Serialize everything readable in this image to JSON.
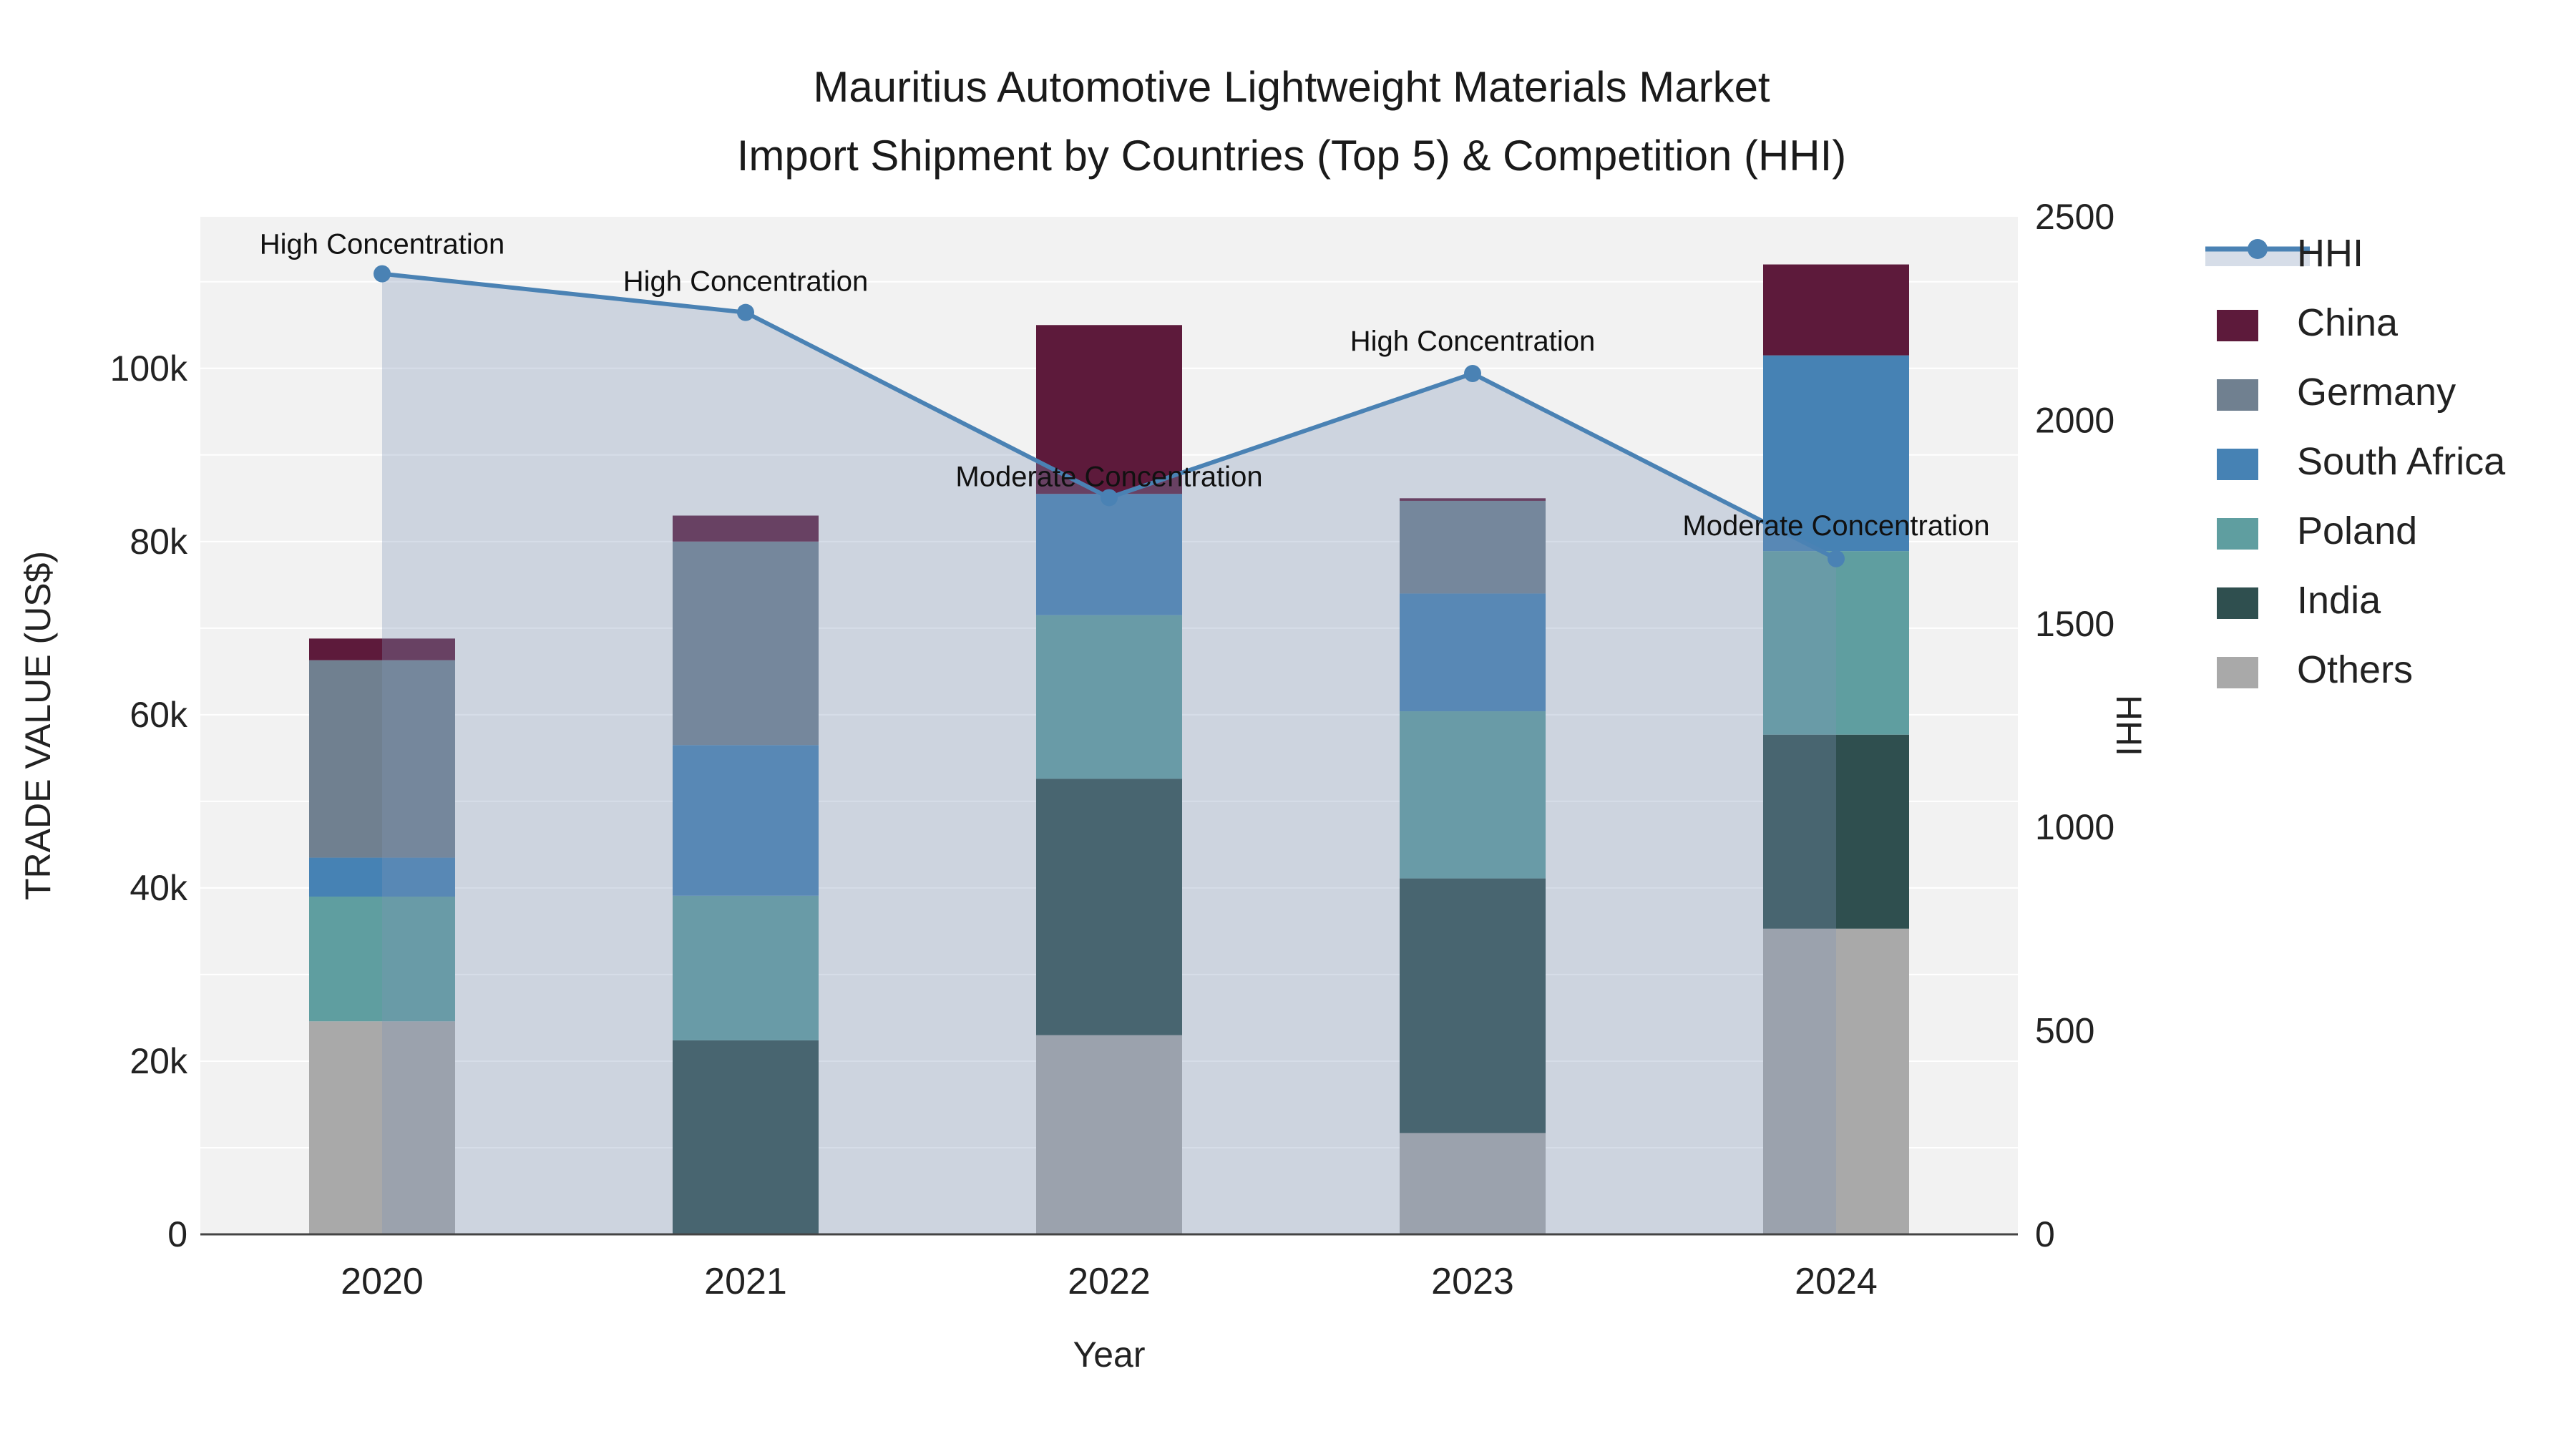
{
  "title": {
    "line1": "Mauritius Automotive Lightweight Materials Market",
    "line2": "Import Shipment by Countries (Top 5) & Competition (HHI)"
  },
  "axes": {
    "y_left": {
      "title": "TRADE VALUE (US$)",
      "tick_values": [
        0,
        20000,
        40000,
        60000,
        80000,
        100000
      ],
      "tick_labels": [
        "0",
        "20k",
        "40k",
        "60k",
        "80k",
        "100k"
      ],
      "max": 117500,
      "minor_grid_step": 10000
    },
    "y_right": {
      "title": "HHI",
      "tick_values": [
        0,
        500,
        1000,
        1500,
        2000,
        2500
      ],
      "tick_labels": [
        "0",
        "500",
        "1000",
        "1500",
        "2000",
        "2500"
      ],
      "max": 2500
    },
    "x": {
      "title": "Year",
      "categories": [
        "2020",
        "2021",
        "2022",
        "2023",
        "2024"
      ]
    }
  },
  "legend": {
    "items": [
      {
        "label": "HHI",
        "type": "line",
        "color_key": "hhi_line"
      },
      {
        "label": "China",
        "type": "swatch",
        "color_key": "China"
      },
      {
        "label": "Germany",
        "type": "swatch",
        "color_key": "Germany"
      },
      {
        "label": "South Africa",
        "type": "swatch",
        "color_key": "South Africa"
      },
      {
        "label": "Poland",
        "type": "swatch",
        "color_key": "Poland"
      },
      {
        "label": "India",
        "type": "swatch",
        "color_key": "India"
      },
      {
        "label": "Others",
        "type": "swatch",
        "color_key": "Others"
      }
    ]
  },
  "colors": {
    "China": "#5D1A3B",
    "Germany": "#708090",
    "South Africa": "#4682B4",
    "Poland": "#5F9EA0",
    "India": "#2F4F4F",
    "Others": "#A9A9A9",
    "hhi_line": "#4A82B4",
    "hhi_fill": "rgba(128,150,185,0.32)",
    "plot_bg": "#F2F2F2",
    "grid": "#FFFFFF",
    "axis_line": "#444444"
  },
  "chart_data": {
    "type": "combo: stacked bar (left axis) + line with area fill (right axis)",
    "title": "Mauritius Automotive Lightweight Materials Market Import Shipment by Countries (Top 5) & Competition (HHI)",
    "xlabel": "Year",
    "ylabel_left": "TRADE VALUE (US$)",
    "ylabel_right": "HHI",
    "ylim_left": [
      0,
      117500
    ],
    "ylim_right": [
      0,
      2500
    ],
    "grid": "on (white minor gridlines every 10k)",
    "legend_position": "right",
    "categories": [
      "2020",
      "2021",
      "2022",
      "2023",
      "2024"
    ],
    "bar_stack_order_bottom_to_top": [
      "Others",
      "India",
      "Poland",
      "South Africa",
      "Germany",
      "China"
    ],
    "series": [
      {
        "name": "Others",
        "values": [
          24600,
          0,
          23000,
          11700,
          35300
        ]
      },
      {
        "name": "India",
        "values": [
          0,
          22400,
          29600,
          29400,
          22400
        ]
      },
      {
        "name": "Poland",
        "values": [
          14400,
          16700,
          18900,
          19300,
          21200
        ]
      },
      {
        "name": "South Africa",
        "values": [
          4500,
          17400,
          14000,
          13600,
          22600
        ]
      },
      {
        "name": "Germany",
        "values": [
          22800,
          23500,
          0,
          10700,
          0
        ]
      },
      {
        "name": "China",
        "values": [
          2500,
          3000,
          19500,
          300,
          10500
        ]
      }
    ],
    "bar_totals": [
      68800,
      83000,
      105000,
      85000,
      112000
    ],
    "hhi": {
      "name": "HHI",
      "values": [
        2360,
        2265,
        1810,
        2115,
        1660
      ]
    },
    "annotations": [
      {
        "year_index": 0,
        "text": "High Concentration",
        "dy": -42
      },
      {
        "year_index": 1,
        "text": "High Concentration",
        "dy": -44
      },
      {
        "year_index": 2,
        "text": "Moderate Concentration",
        "dy": -30
      },
      {
        "year_index": 3,
        "text": "High Concentration",
        "dy": -46
      },
      {
        "year_index": 4,
        "text": "Moderate Concentration",
        "dy": -47
      }
    ]
  }
}
